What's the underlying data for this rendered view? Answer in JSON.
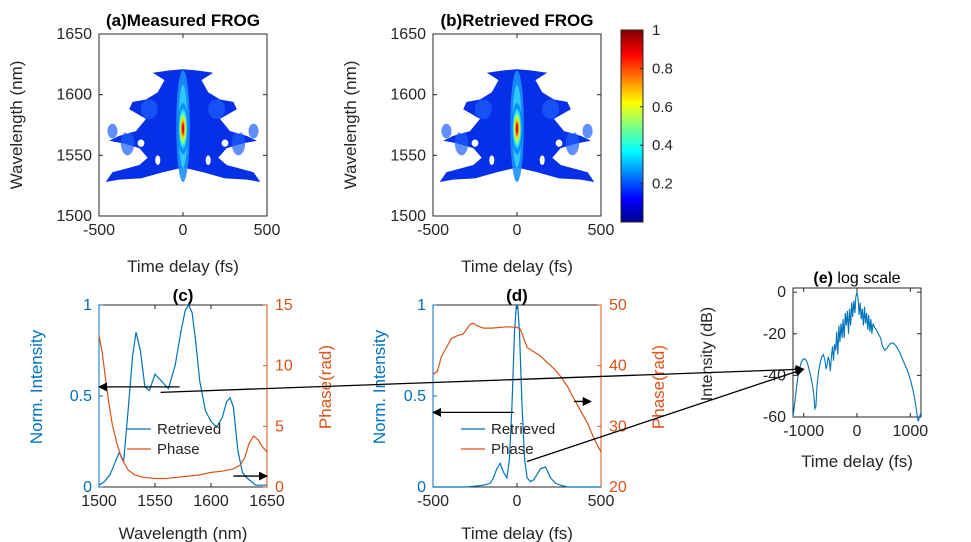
{
  "colors": {
    "blue": "#0072BD",
    "orange": "#D95319",
    "axis": "#262626",
    "colormap": "jet"
  },
  "panels": {
    "a": {
      "title": "(a)Measured FROG",
      "xlabel": "Time delay (fs)",
      "ylabel": "Wavelength (nm)"
    },
    "b": {
      "title": "(b)Retrieved FROG",
      "xlabel": "Time delay (fs)",
      "ylabel": "Wavelength (nm)"
    },
    "c": {
      "title": "(c)",
      "xlabel": "Wavelength (nm)",
      "ylabel_left": "Norm. Intensity",
      "ylabel_right": "Phase(rad)",
      "legend": [
        "Retrieved",
        "Phase"
      ]
    },
    "d": {
      "title": "(d)",
      "xlabel": "Time delay (fs)",
      "ylabel_left": "Norm. Intensity",
      "ylabel_right": "Phase(rad)",
      "legend": [
        "Retrieved",
        "Phase"
      ]
    },
    "e": {
      "title_bold": "(e)",
      "title_rest": " log scale",
      "xlabel": "Time delay (fs)",
      "ylabel": "Intensity (dB)"
    }
  },
  "chart_data": [
    {
      "id": "a",
      "type": "heatmap",
      "xlim": [
        -500,
        500
      ],
      "ylim": [
        1500,
        1650
      ],
      "xticks": [
        -500,
        0,
        500
      ],
      "yticks": [
        1500,
        1550,
        1600,
        1650
      ],
      "peak": {
        "x": 0,
        "y": 1572,
        "value": 1
      },
      "clim": [
        0,
        1
      ]
    },
    {
      "id": "b",
      "type": "heatmap",
      "xlim": [
        -500,
        500
      ],
      "ylim": [
        1500,
        1650
      ],
      "xticks": [
        -500,
        0,
        500
      ],
      "yticks": [
        1500,
        1550,
        1600,
        1650
      ],
      "peak": {
        "x": 0,
        "y": 1572,
        "value": 1
      },
      "colorbar": {
        "ticks": [
          0.2,
          0.4,
          0.6,
          0.8,
          1
        ],
        "clim": [
          0,
          1
        ]
      }
    },
    {
      "id": "c",
      "type": "line",
      "xlim": [
        1500,
        1650
      ],
      "ylim": [
        0,
        1
      ],
      "ylim_right": [
        0,
        15
      ],
      "xticks": [
        1500,
        1550,
        1600,
        1650
      ],
      "yticks": [
        0,
        0.5,
        1
      ],
      "yticks_right": [
        0,
        5,
        10,
        15
      ],
      "series": [
        {
          "name": "Retrieved",
          "axis": "left",
          "x": [
            1500,
            1505,
            1510,
            1514,
            1518,
            1522,
            1526,
            1530,
            1533,
            1537,
            1541,
            1545,
            1550,
            1556,
            1562,
            1568,
            1573,
            1577,
            1580,
            1583,
            1586,
            1590,
            1595,
            1600,
            1605,
            1610,
            1614,
            1617,
            1620,
            1624,
            1628,
            1632,
            1636,
            1640,
            1645,
            1650
          ],
          "y": [
            0.01,
            0.03,
            0.07,
            0.13,
            0.19,
            0.14,
            0.42,
            0.72,
            0.85,
            0.75,
            0.55,
            0.53,
            0.62,
            0.58,
            0.54,
            0.67,
            0.85,
            0.97,
            1.0,
            0.96,
            0.82,
            0.58,
            0.42,
            0.36,
            0.33,
            0.38,
            0.47,
            0.49,
            0.44,
            0.2,
            0.08,
            0.05,
            0.03,
            0.01,
            0.01,
            0.01
          ]
        },
        {
          "name": "Phase",
          "axis": "right",
          "x": [
            1500,
            1503,
            1506,
            1509,
            1512,
            1516,
            1520,
            1526,
            1532,
            1540,
            1550,
            1560,
            1570,
            1580,
            1590,
            1600,
            1610,
            1620,
            1626,
            1630,
            1634,
            1638,
            1642,
            1646,
            1650
          ],
          "y": [
            12.5,
            11.0,
            8.8,
            6.8,
            5.1,
            3.6,
            2.4,
            1.4,
            1.0,
            0.8,
            0.7,
            0.7,
            0.8,
            0.9,
            1.0,
            1.2,
            1.3,
            1.5,
            1.8,
            2.4,
            3.6,
            4.2,
            3.9,
            3.3,
            2.9
          ]
        }
      ],
      "arrows": [
        {
          "from": [
            1572,
            0.55
          ],
          "to": [
            1500,
            0.55
          ],
          "ref": "left"
        },
        {
          "from": [
            1620,
            0.06
          ],
          "to": [
            1650,
            0.06
          ],
          "ref": "left"
        }
      ]
    },
    {
      "id": "d",
      "type": "line",
      "xlim": [
        -500,
        500
      ],
      "ylim": [
        0,
        1
      ],
      "ylim_right": [
        20,
        50
      ],
      "xticks": [
        -500,
        0,
        500
      ],
      "yticks": [
        0,
        0.5,
        1
      ],
      "yticks_right": [
        20,
        30,
        40,
        50
      ],
      "series": [
        {
          "name": "Retrieved",
          "axis": "left",
          "x": [
            -500,
            -400,
            -300,
            -200,
            -160,
            -140,
            -120,
            -100,
            -80,
            -60,
            -45,
            -30,
            -15,
            -5,
            0,
            5,
            15,
            30,
            45,
            60,
            80,
            100,
            120,
            140,
            170,
            200,
            230,
            260,
            300,
            400,
            500
          ],
          "y": [
            0,
            0,
            0,
            0.01,
            0.02,
            0.05,
            0.1,
            0.13,
            0.08,
            0.05,
            0.15,
            0.45,
            0.85,
            0.99,
            1.0,
            0.99,
            0.85,
            0.45,
            0.15,
            0.05,
            0.03,
            0.04,
            0.07,
            0.1,
            0.11,
            0.05,
            0.02,
            0.01,
            0,
            0,
            0
          ]
        },
        {
          "name": "Phase",
          "axis": "right",
          "x": [
            -500,
            -490,
            -475,
            -465,
            -450,
            -420,
            -390,
            -350,
            -320,
            -300,
            -280,
            -260,
            -240,
            -200,
            -150,
            -100,
            -50,
            0,
            20,
            40,
            60,
            100,
            140,
            180,
            220,
            260,
            300,
            340,
            380,
            420,
            450,
            480,
            500
          ],
          "y": [
            38.5,
            38.8,
            39.0,
            40.0,
            41.5,
            43.0,
            44.5,
            45.0,
            45.2,
            46.0,
            46.8,
            47.0,
            46.6,
            46.2,
            46.2,
            46.3,
            46.4,
            46.3,
            46.0,
            44.5,
            43.0,
            42.3,
            41.6,
            40.5,
            39.5,
            38.2,
            36.6,
            34.5,
            32.5,
            30.5,
            28.5,
            26.8,
            25.8
          ]
        }
      ],
      "arrows": [
        {
          "from": [
            -20,
            0.41
          ],
          "to": [
            -500,
            0.41
          ],
          "ref": "left"
        },
        {
          "from": [
            340,
            0.47
          ],
          "to": [
            440,
            0.47
          ],
          "ref": "left"
        }
      ]
    },
    {
      "id": "e",
      "type": "line",
      "xlim": [
        -1200,
        1200
      ],
      "ylim": [
        -60,
        2
      ],
      "xticks": [
        -1000,
        0,
        1000
      ],
      "yticks": [
        -60,
        -40,
        -20,
        0
      ],
      "series": [
        {
          "name": "Intensity",
          "x": [
            -1200,
            -1170,
            -1140,
            -1110,
            -1080,
            -1050,
            -1020,
            -990,
            -960,
            -930,
            -900,
            -870,
            -840,
            -810,
            -790,
            -770,
            -750,
            -720,
            -690,
            -660,
            -630,
            -600,
            -580,
            -560,
            -540,
            -520,
            -500,
            -480,
            -460,
            -440,
            -420,
            -400,
            -380,
            -360,
            -340,
            -320,
            -300,
            -280,
            -260,
            -240,
            -220,
            -200,
            -180,
            -160,
            -140,
            -120,
            -100,
            -80,
            -60,
            -40,
            -20,
            0,
            20,
            40,
            60,
            80,
            100,
            120,
            140,
            160,
            180,
            200,
            220,
            240,
            260,
            280,
            300,
            330,
            360,
            400,
            440,
            480,
            520,
            560,
            600,
            640,
            680,
            720,
            760,
            800,
            850,
            900,
            950,
            1000,
            1050,
            1080,
            1110,
            1130,
            1150,
            1170,
            1200
          ],
          "y": [
            -60,
            -54,
            -47,
            -41,
            -37,
            -34,
            -32.5,
            -32,
            -32.5,
            -34,
            -37,
            -40,
            -44,
            -49,
            -56,
            -55,
            -45,
            -38,
            -34,
            -31,
            -30,
            -33,
            -37,
            -35,
            -31,
            -33,
            -38,
            -31,
            -26,
            -33,
            -25,
            -28,
            -19,
            -30,
            -16,
            -24,
            -15,
            -22,
            -13,
            -22,
            -10,
            -16,
            -9,
            -20,
            -8,
            -16,
            -5,
            -12,
            -4,
            -10,
            -2,
            0,
            -3,
            -11,
            -5,
            -13,
            -8,
            -16,
            -7,
            -15,
            -10,
            -18,
            -11,
            -19,
            -13,
            -20,
            -15,
            -17,
            -18,
            -20,
            -22,
            -26,
            -28,
            -27,
            -25.5,
            -24.5,
            -24.5,
            -25.5,
            -27,
            -29,
            -32,
            -35,
            -38,
            -42,
            -47,
            -51,
            -56,
            -60,
            -62,
            -60,
            -58
          ]
        }
      ]
    }
  ],
  "connector_arrows": [
    {
      "from_panel": "c",
      "from": [
        1555,
        0.52
      ]
    },
    {
      "from_panel": "d",
      "from": [
        60,
        0.14
      ]
    }
  ]
}
